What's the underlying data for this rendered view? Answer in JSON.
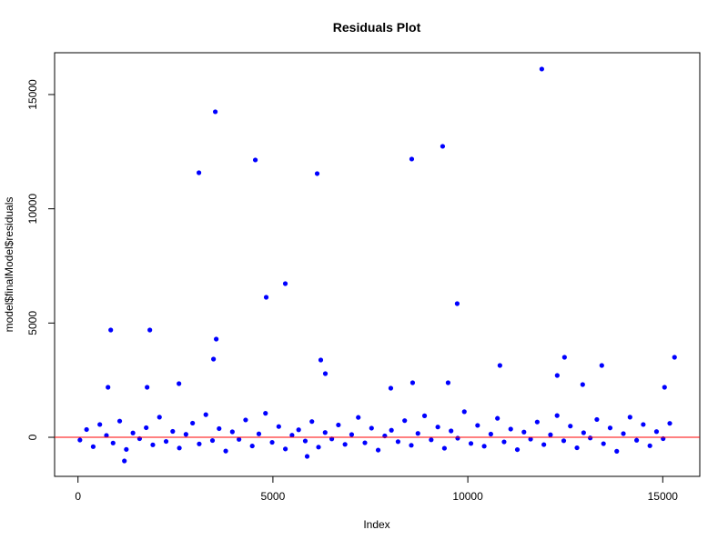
{
  "chart_data": {
    "type": "scatter",
    "title": "Residuals Plot",
    "x_label": "Index",
    "y_label": "model$finalModel$residuals",
    "xlim": [
      -600,
      15950
    ],
    "ylim": [
      -1710,
      16830
    ],
    "xticks": [
      0,
      5000,
      10000,
      15000
    ],
    "yticks": [
      0,
      5000,
      10000,
      15000
    ],
    "hline": {
      "value": 0,
      "color": "#ff0000"
    },
    "grid": false,
    "series": [
      {
        "color": "#0000ff",
        "x": [
          50,
          220,
          390,
          560,
          730,
          900,
          1070,
          1240,
          1410,
          1580,
          1750,
          1920,
          2090,
          2260,
          2430,
          2600,
          2770,
          2940,
          3110,
          3280,
          3450,
          3620,
          3790,
          3960,
          4130,
          4300,
          4470,
          4640,
          4810,
          4980,
          5150,
          5320,
          5490,
          5660,
          5830,
          6000,
          6170,
          6340,
          6510,
          6680,
          6850,
          7020,
          7190,
          7360,
          7530,
          7700,
          7870,
          8040,
          8210,
          8380,
          8550,
          8720,
          8890,
          9060,
          9230,
          9400,
          9570,
          9740,
          9910,
          10080,
          10250,
          10420,
          10590,
          10760,
          10930,
          11100,
          11270,
          11440,
          11610,
          11780,
          11950,
          12120,
          12290,
          12460,
          12630,
          12800,
          12970,
          13140,
          13310,
          13480,
          13650,
          13820,
          13990,
          14160,
          14330,
          14500,
          14670,
          14840,
          15010,
          15180,
          11897,
          3522,
          4549,
          3102,
          6135,
          8561,
          9354,
          5318,
          4828,
          9727,
          840,
          1843,
          3546,
          3476,
          6228,
          10823,
          12480,
          13436,
          15302,
          770,
          1773,
          2590,
          6345,
          8024,
          8584,
          9494,
          12293,
          12946,
          15046,
          1190,
          5878
        ],
        "y": [
          -120,
          340,
          -410,
          560,
          80,
          -250,
          710,
          -530,
          190,
          -60,
          420,
          -330,
          880,
          -180,
          260,
          -470,
          130,
          620,
          -290,
          990,
          -140,
          380,
          -600,
          240,
          -90,
          760,
          -380,
          150,
          1050,
          -220,
          470,
          -510,
          90,
          330,
          -160,
          690,
          -430,
          210,
          -70,
          540,
          -310,
          120,
          870,
          -240,
          400,
          -560,
          60,
          310,
          -190,
          730,
          -350,
          170,
          940,
          -110,
          450,
          -480,
          280,
          -40,
          1120,
          -270,
          520,
          -390,
          140,
          830,
          -200,
          360,
          -540,
          230,
          -80,
          670,
          -320,
          110,
          950,
          -150,
          490,
          -460,
          200,
          -30,
          780,
          -280,
          410,
          -610,
          160,
          880,
          -130,
          560,
          -370,
          250,
          -60,
          610,
          16116,
          14246,
          12137,
          11579,
          11540,
          12177,
          12734,
          6725,
          6128,
          5849,
          4695,
          4695,
          4298,
          3422,
          3382,
          3143,
          3502,
          3143,
          3502,
          2190,
          2190,
          2348,
          2786,
          2149,
          2388,
          2388,
          2706,
          2308,
          2190,
          -1035,
          -836
        ]
      }
    ]
  }
}
